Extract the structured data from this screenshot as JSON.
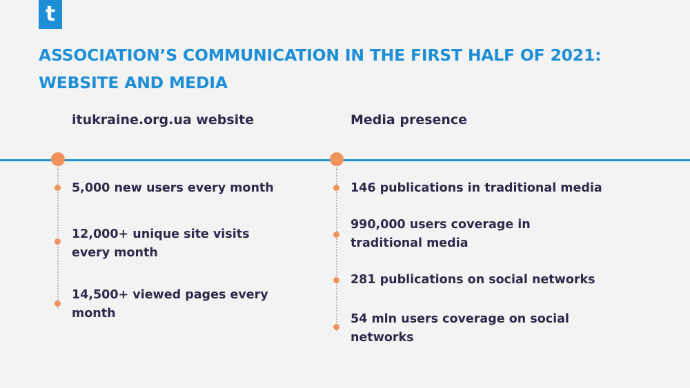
{
  "logo": {
    "glyph": "t"
  },
  "title": {
    "line1": "ASSOCIATION’S COMMUNICATION IN THE FIRST HALF OF 2021:",
    "line2": "WEBSITE AND MEDIA"
  },
  "columns": [
    {
      "header": "itukraine.org.ua website",
      "items": [
        {
          "line1": "5,000 new users every month",
          "line2": ""
        },
        {
          "line1": "12,000+ unique site visits",
          "line2": "every month"
        },
        {
          "line1": "14,500+ viewed pages every",
          "line2": "month"
        }
      ]
    },
    {
      "header": "Media presence",
      "items": [
        {
          "line1": "146 publications in traditional media",
          "line2": ""
        },
        {
          "line1": "990,000 users coverage in",
          "line2": "traditional media"
        },
        {
          "line1": "281 publications on social networks",
          "line2": ""
        },
        {
          "line1": "54 mln users coverage on social",
          "line2": "networks"
        }
      ]
    }
  ],
  "colors": {
    "accent": "#1e8fd6",
    "dot": "#f0925c",
    "text": "#2c2a4a",
    "background": "#f3f3f3"
  }
}
